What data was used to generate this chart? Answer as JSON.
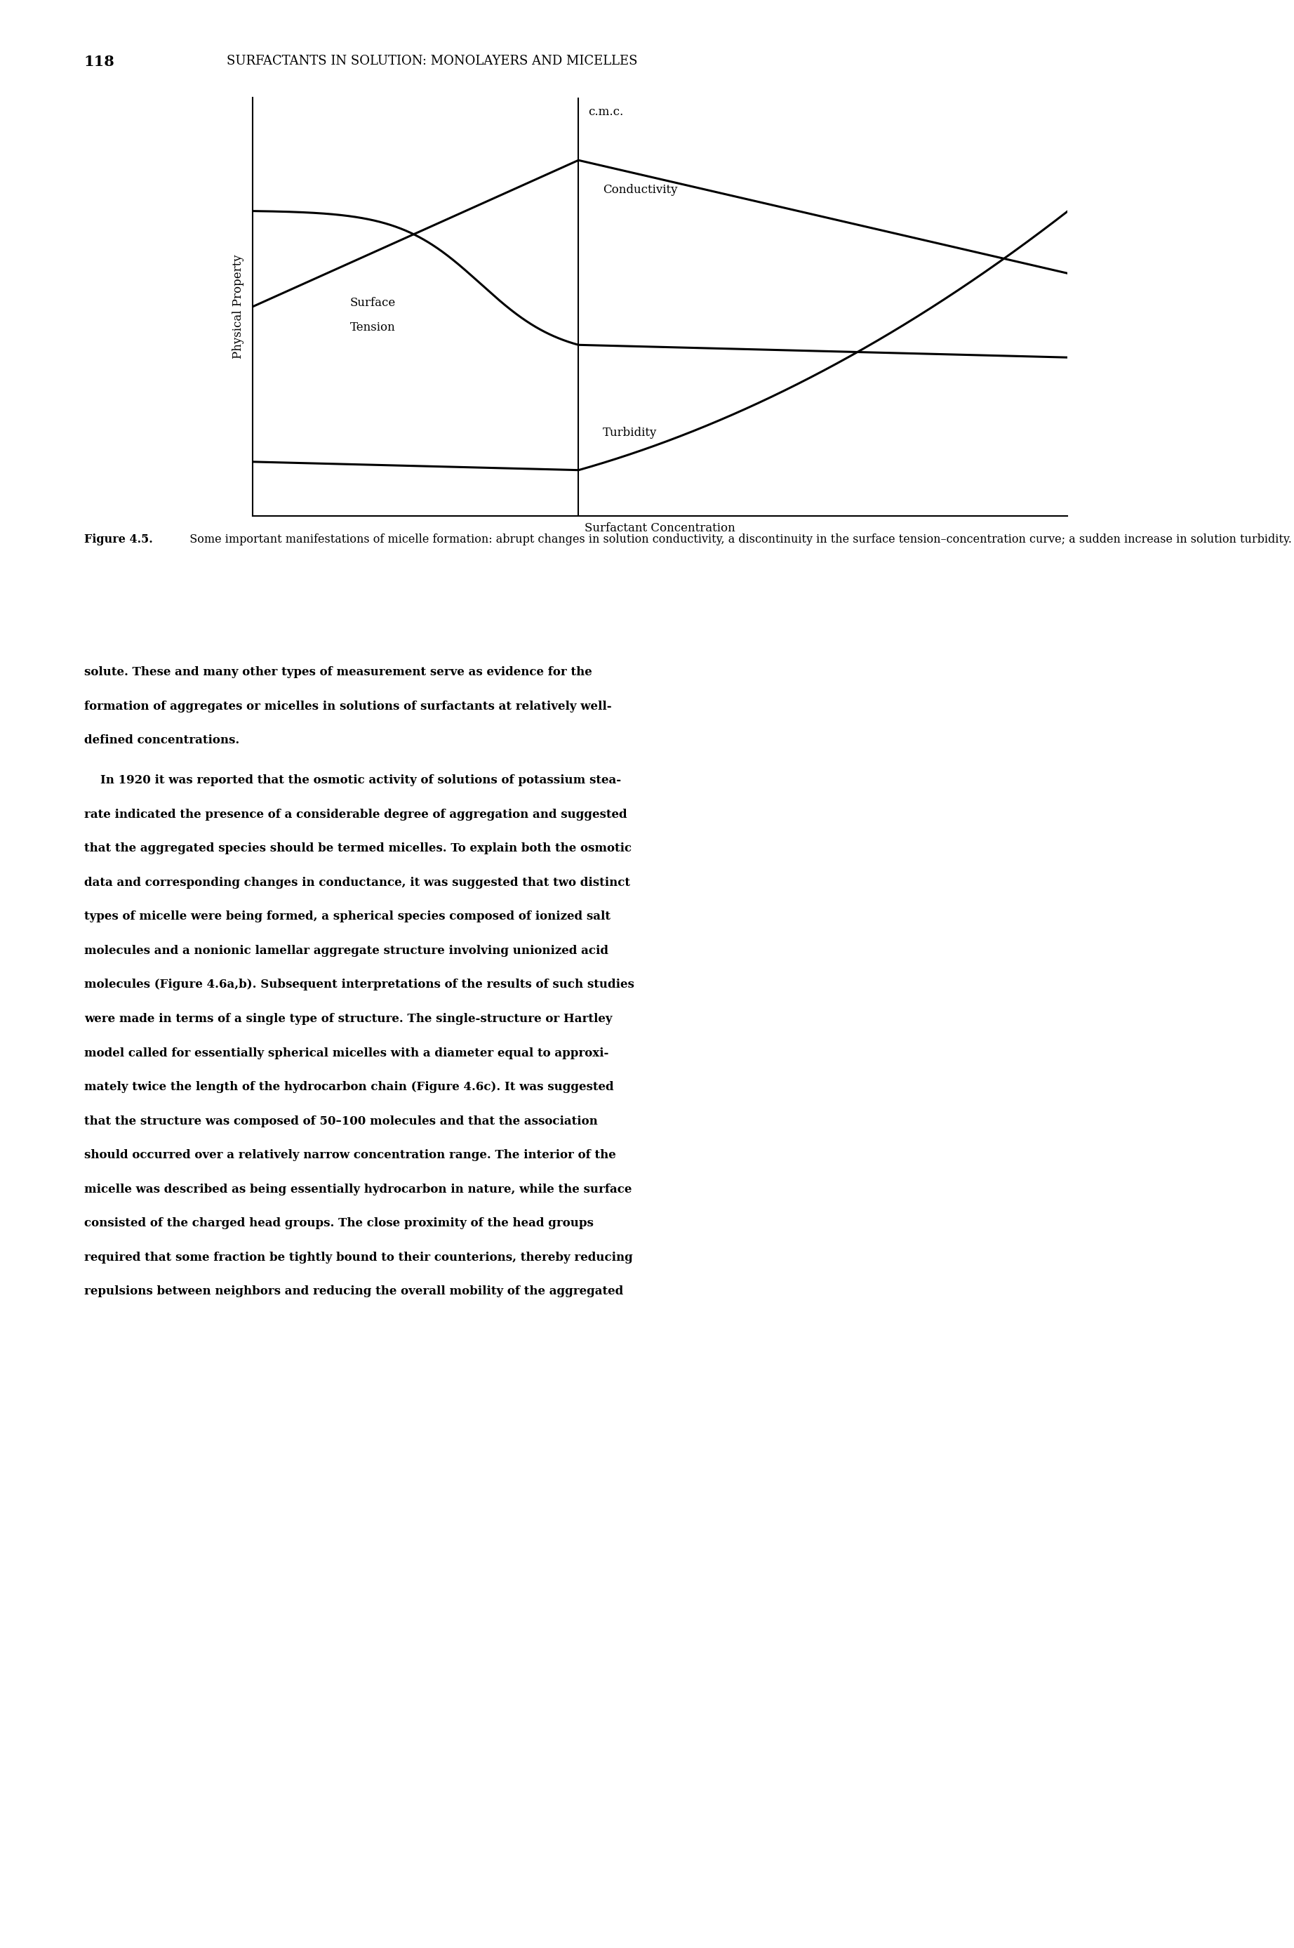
{
  "page_number": "118",
  "page_header": "SURFACTANTS IN SOLUTION: MONOLAYERS AND MICELLES",
  "cmc_label": "c.m.c.",
  "ylabel": "Physical Property",
  "xlabel": "Surfactant Concentration",
  "conductivity_label": "Conductivity",
  "surface_tension_label_line1": "Surface",
  "surface_tension_label_line2": "Tension",
  "turbidity_label": "Turbidity",
  "background_color": "#ffffff",
  "line_color": "#000000",
  "caption_bold": "Figure 4.5.",
  "caption_normal": "  Some important manifestations of micelle formation: abrupt changes in solution conductivity, a discontinuity in the surface tension–concentration curve; a sudden increase in solution turbidity.",
  "body_paragraph1": "solute. These and many other types of measurement serve as evidence for the formation of aggregates or micelles in solutions of surfactants at relatively well-defined concentrations.",
  "body_paragraph2": "    In 1920 it was reported that the osmotic activity of solutions of potassium stearate indicated the presence of a considerable degree of aggregation and suggested that the aggregated species should be termed micelles. To explain both the osmotic data and corresponding changes in conductance, it was suggested that two distinct types of micelle were being formed, a spherical species composed of ionized salt molecules and a nonionic lamellar aggregate structure involving unionized acid molecules (Figure 4.6a,b). Subsequent interpretations of the results of such studies were made in terms of a single type of structure. The single-structure or Hartley model called for essentially spherical micelles with a diameter equal to approximately twice the length of the hydrocarbon chain (Figure 4.6c). It was suggested that the structure was composed of 50–100 molecules and that the association should occurred over a relatively narrow concentration range. The interior of the micelle was described as being essentially hydrocarbon in nature, while the surface consisted of the charged head groups. The close proximity of the head groups required that some fraction be tightly bound to their counterions, thereby reducing repulsions between neighbors and reducing the overall mobility of the aggregated"
}
